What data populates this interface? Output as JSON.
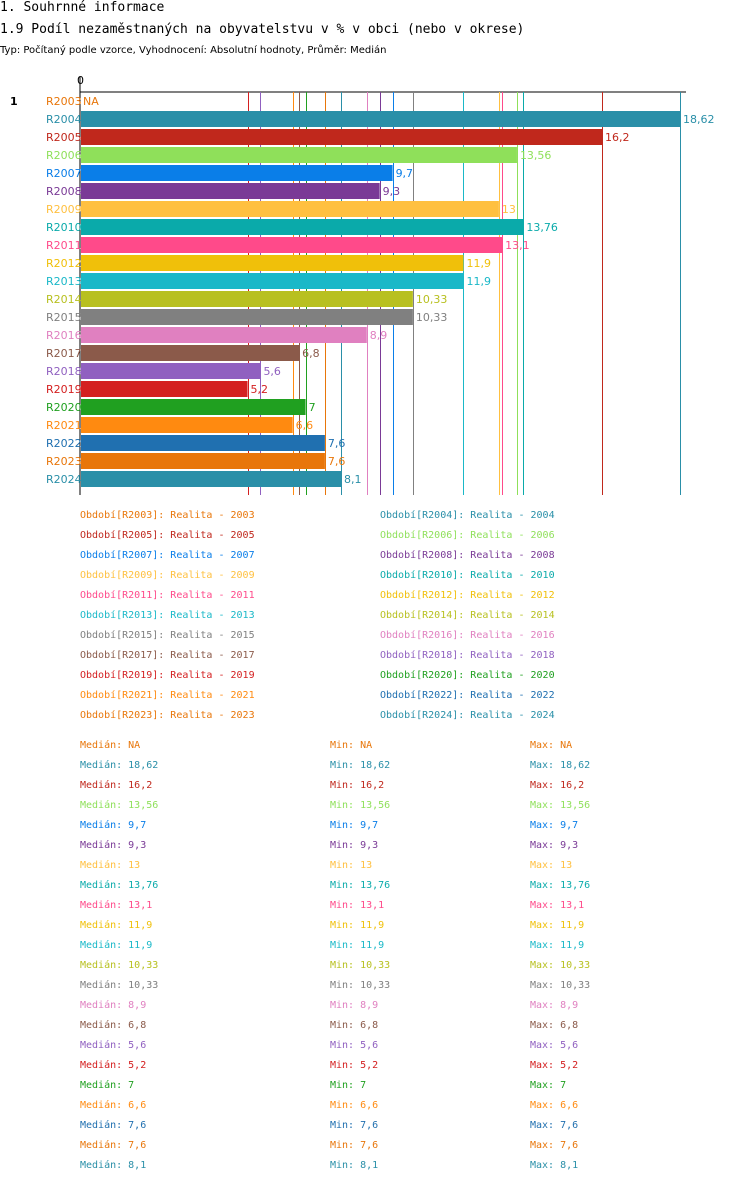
{
  "header": {
    "section_title": "1. Souhrnné informace",
    "chart_title": "1.9 Podíl nezaměstnaných na obyvatelstvu v % v obci (nebo v okrese)",
    "type_line": "Typ: Počítaný podle vzorce, Vyhodnocení: Absolutní hodnoty, Průměr: Medián",
    "row_number": "1"
  },
  "chart_data": {
    "type": "bar",
    "orientation": "horizontal",
    "title": "1.9 Podíl nezaměstnaných na obyvatelstvu v % v obci (nebo v okrese)",
    "axis_zero_label": "0",
    "xlim": [
      0,
      18.62
    ],
    "categories": [
      "R2003",
      "R2004",
      "R2005",
      "R2006",
      "R2007",
      "R2008",
      "R2009",
      "R2010",
      "R2011",
      "R2012",
      "R2013",
      "R2014",
      "R2015",
      "R2016",
      "R2017",
      "R2018",
      "R2019",
      "R2020",
      "R2021",
      "R2022",
      "R2023",
      "R2024"
    ],
    "values": [
      null,
      18.62,
      16.2,
      13.56,
      9.7,
      9.3,
      13,
      13.76,
      13.1,
      11.9,
      11.9,
      10.33,
      10.33,
      8.9,
      6.8,
      5.6,
      5.2,
      7,
      6.6,
      7.6,
      7.6,
      8.1
    ],
    "value_labels": [
      "NA",
      "18,62",
      "16,2",
      "13,56",
      "9,7",
      "9,3",
      "13",
      "13,76",
      "13,1",
      "11,9",
      "11,9",
      "10,33",
      "10,33",
      "8,9",
      "6,8",
      "5,6",
      "5,2",
      "7",
      "6,6",
      "7,6",
      "7,6",
      "8,1"
    ],
    "colors": [
      "#e8760a",
      "#2a8fa8",
      "#c0281c",
      "#8fe05a",
      "#0a7ee8",
      "#7a3a96",
      "#ffc040",
      "#0aaaaa",
      "#ff4a8a",
      "#f0c00a",
      "#1ab8c8",
      "#b8c020",
      "#808080",
      "#e080c0",
      "#8b5a4a",
      "#9060c0",
      "#d42020",
      "#20a020",
      "#ff8a10",
      "#2070b0",
      "#e8760a",
      "#2a8fa8"
    ],
    "legend": [
      "Období[R2003]: Realita - 2003",
      "Období[R2004]: Realita - 2004",
      "Období[R2005]: Realita - 2005",
      "Období[R2006]: Realita - 2006",
      "Období[R2007]: Realita - 2007",
      "Období[R2008]: Realita - 2008",
      "Období[R2009]: Realita - 2009",
      "Období[R2010]: Realita - 2010",
      "Období[R2011]: Realita - 2011",
      "Období[R2012]: Realita - 2012",
      "Období[R2013]: Realita - 2013",
      "Období[R2014]: Realita - 2014",
      "Období[R2015]: Realita - 2015",
      "Období[R2016]: Realita - 2016",
      "Období[R2017]: Realita - 2017",
      "Období[R2018]: Realita - 2018",
      "Období[R2019]: Realita - 2019",
      "Období[R2020]: Realita - 2020",
      "Období[R2021]: Realita - 2021",
      "Období[R2022]: Realita - 2022",
      "Období[R2023]: Realita - 2023",
      "Období[R2024]: Realita - 2024"
    ],
    "stats_labels": {
      "median": "Medián",
      "min": "Min",
      "max": "Max"
    }
  }
}
